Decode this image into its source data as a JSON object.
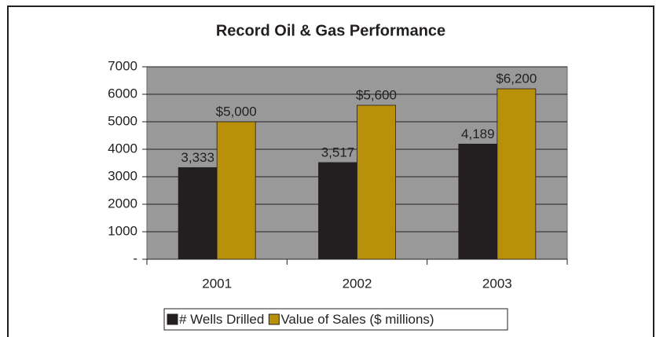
{
  "chart_data": {
    "type": "bar",
    "title": "Record Oil & Gas Performance",
    "categories": [
      "2001",
      "2002",
      "2003"
    ],
    "series": [
      {
        "name": "# Wells Drilled",
        "color": "#231f20",
        "values": [
          3333,
          3517,
          4189
        ],
        "value_labels": [
          "3,333",
          "3,517",
          "4,189"
        ]
      },
      {
        "name": "Value of Sales ($ millions)",
        "color": "#b8900a",
        "values": [
          5000,
          5600,
          6200
        ],
        "value_labels": [
          "$5,000",
          "$5,600",
          "$6,200"
        ]
      }
    ],
    "ylim": [
      0,
      7000
    ],
    "yticks": [
      {
        "value": 0,
        "label": "-"
      },
      1000,
      2000,
      3000,
      4000,
      5000,
      6000,
      7000
    ],
    "grid": true,
    "legend": "bottom"
  }
}
